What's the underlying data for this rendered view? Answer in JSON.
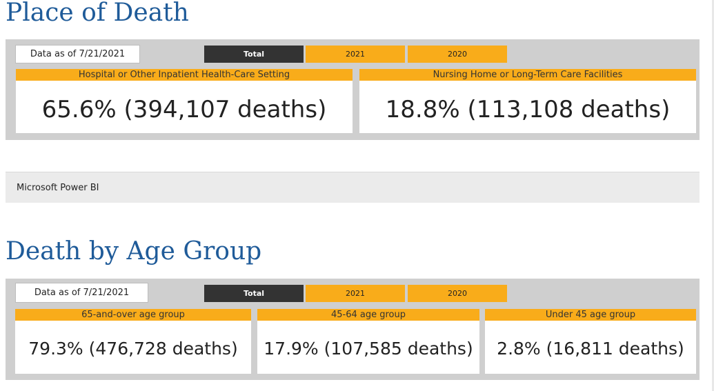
{
  "place_section": {
    "title": "Place of Death",
    "date_label": "Data as of 7/21/2021",
    "tabs": [
      "Total",
      "2021",
      "2020"
    ],
    "active_tab": "Total",
    "cards": [
      {
        "header": "Hospital or Other Inpatient Health-Care Setting",
        "value": "65.6% (394,107 deaths)"
      },
      {
        "header": "Nursing Home or Long-Term Care Facilities",
        "value": "18.8% (113,108 deaths)"
      }
    ]
  },
  "powerbi_bar": {
    "label": "Microsoft Power BI"
  },
  "age_section": {
    "title": "Death by Age Group",
    "date_label": "Data as of 7/21/2021",
    "tabs": [
      "Total",
      "2021",
      "2020"
    ],
    "active_tab": "Total",
    "cards": [
      {
        "header": "65-and-over age group",
        "value": "79.3% (476,728 deaths)"
      },
      {
        "header": "45-64 age group",
        "value": "17.9% (107,585 deaths)"
      },
      {
        "header": "Under 45 age group",
        "value": "2.8% (16,811 deaths)"
      }
    ]
  },
  "colors": {
    "title": "#1f5b99",
    "accent": "#f9ac1a",
    "active_tab": "#333333",
    "panel": "#cfcfcf"
  }
}
